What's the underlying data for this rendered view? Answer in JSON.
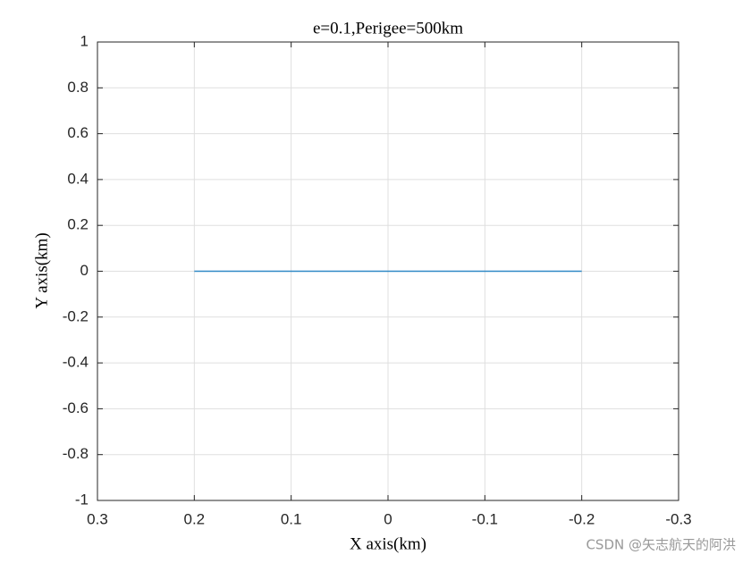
{
  "chart_data": {
    "type": "line",
    "title": "e=0.1,Perigee=500km",
    "x_label": "X axis(km)",
    "y_label": "Y axis(km)",
    "x": [
      0.2,
      -0.2
    ],
    "values": [
      0,
      0
    ],
    "color": "#0072bd",
    "xlim": [
      0.3,
      -0.3
    ],
    "xticks": [
      0.3,
      0.2,
      0.1,
      0,
      -0.1,
      -0.2,
      -0.3
    ],
    "ylim": [
      -1,
      1
    ],
    "yticks": [
      -1,
      -0.8,
      -0.6,
      -0.4,
      -0.2,
      0,
      0.2,
      0.4,
      0.6,
      0.8,
      1
    ],
    "grid": true
  },
  "watermark": "CSDN @矢志航天的阿洪"
}
